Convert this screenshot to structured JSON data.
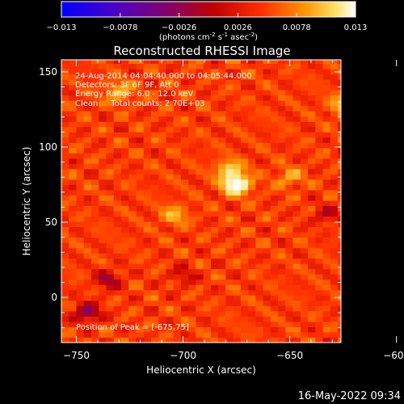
{
  "colorbar": {
    "ticks": [
      "-0.013",
      "-0.0078",
      "-0.0026",
      "0.0026",
      "0.0078",
      "0.013"
    ],
    "tick_values": [
      -0.013,
      -0.0078,
      -0.0026,
      0.0026,
      0.0078,
      0.013
    ],
    "range": [
      -0.013,
      0.013
    ],
    "unit_label": {
      "part1": "(photons cm",
      "exp1": "-2",
      "part2": " s",
      "exp2": "-1",
      "part3": " asec",
      "exp3": "-2",
      "part4": ")"
    }
  },
  "chart_data": {
    "type": "heatmap",
    "title": "Reconstructed RHESSI Image",
    "xlabel": "Heliocentric X (arcsec)",
    "ylabel": "Heliocentric Y (arcsec)",
    "xlim": [
      -757,
      -626
    ],
    "ylim": [
      -30,
      158
    ],
    "xticks": [
      -750,
      -700,
      -650,
      -600
    ],
    "yticks": [
      0,
      50,
      100,
      150
    ],
    "peak": [
      -675,
      75
    ],
    "colormap": [
      "#0000ff",
      "#4a00c8",
      "#800070",
      "#c00000",
      "#ff3000",
      "#ff9000",
      "#ffe060",
      "#ffffff"
    ],
    "bright_sources": [
      {
        "x": -675,
        "y": 75,
        "intensity": 0.0125
      },
      {
        "x": -678,
        "y": 85,
        "intensity": 0.007
      },
      {
        "x": -597,
        "y": 50,
        "intensity": 0.0075
      },
      {
        "x": -608,
        "y": 108,
        "intensity": 0.0065
      },
      {
        "x": -625,
        "y": 128,
        "intensity": 0.006
      },
      {
        "x": -730,
        "y": 137,
        "intensity": 0.0055
      },
      {
        "x": -704,
        "y": 55,
        "intensity": 0.005
      },
      {
        "x": -612,
        "y": 20,
        "intensity": 0.005
      },
      {
        "x": -650,
        "y": 80,
        "intensity": 0.0045
      }
    ],
    "dark_regions": [
      {
        "x": -745,
        "y": -10,
        "intensity": -0.0075
      },
      {
        "x": -735,
        "y": 12,
        "intensity": -0.0055
      },
      {
        "x": -633,
        "y": 55,
        "intensity": -0.004
      },
      {
        "x": -700,
        "y": 15,
        "intensity": -0.0035
      }
    ]
  },
  "annotations": {
    "line1": "24-Aug-2014 04:04:40.000 to 04:05:44.000",
    "line2": "Detectors: 3F 6F 9F, Att 0",
    "line3": "Energy Range: 6.0 - 12.0 keV",
    "line4": "Clean     Total counts: 2.70E+03",
    "peak_text": "Position of Peak = [-675,75]"
  },
  "footer": {
    "timestamp": "16-May-2022 09:34"
  }
}
